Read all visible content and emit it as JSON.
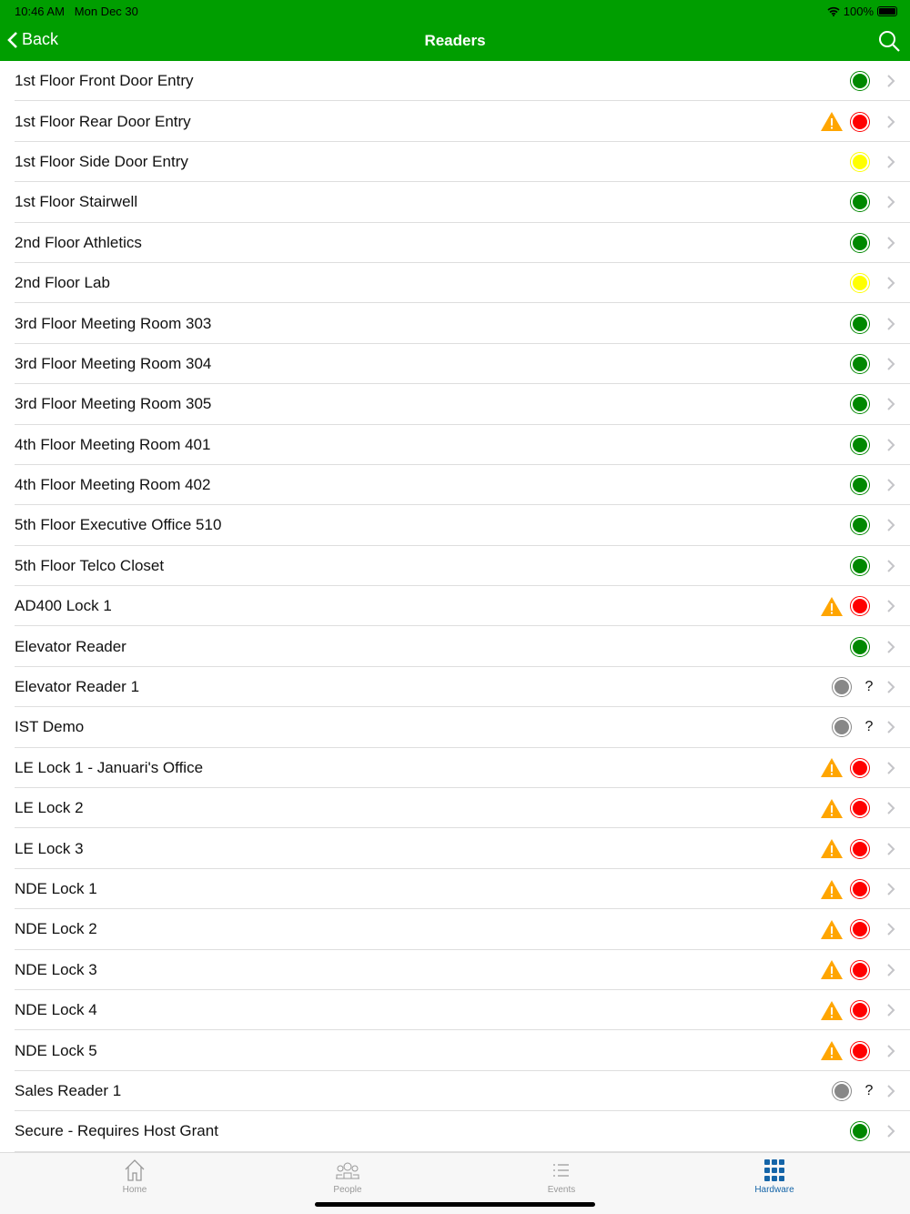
{
  "status_bar": {
    "time": "10:46 AM",
    "date": "Mon Dec 30",
    "battery": "100%"
  },
  "nav": {
    "back_label": "Back",
    "title": "Readers"
  },
  "colors": {
    "accent": "#009e00",
    "online": "#008800",
    "offline": "#ff0000",
    "warning": "#ffff00",
    "unknown": "#888888",
    "alert": "#ffa500",
    "tab_active": "#1565a8"
  },
  "readers": [
    {
      "name": "1st Floor Front Door Entry",
      "status": "online"
    },
    {
      "name": "1st Floor Rear Door Entry",
      "status": "offline"
    },
    {
      "name": "1st Floor Side Door Entry",
      "status": "warning"
    },
    {
      "name": "1st Floor Stairwell",
      "status": "online"
    },
    {
      "name": "2nd Floor Athletics",
      "status": "online"
    },
    {
      "name": "2nd Floor Lab",
      "status": "warning"
    },
    {
      "name": "3rd Floor Meeting Room 303",
      "status": "online"
    },
    {
      "name": "3rd Floor Meeting Room 304",
      "status": "online"
    },
    {
      "name": "3rd Floor Meeting Room 305",
      "status": "online"
    },
    {
      "name": "4th Floor Meeting Room 401",
      "status": "online"
    },
    {
      "name": "4th Floor Meeting Room 402",
      "status": "online"
    },
    {
      "name": "5th Floor Executive Office 510",
      "status": "online"
    },
    {
      "name": "5th Floor Telco Closet",
      "status": "online"
    },
    {
      "name": "AD400 Lock 1",
      "status": "offline"
    },
    {
      "name": "Elevator Reader",
      "status": "online"
    },
    {
      "name": "Elevator Reader 1",
      "status": "unknown"
    },
    {
      "name": "IST Demo",
      "status": "unknown"
    },
    {
      "name": "LE Lock 1 - Januari's Office",
      "status": "offline"
    },
    {
      "name": "LE Lock 2",
      "status": "offline"
    },
    {
      "name": "LE Lock 3",
      "status": "offline"
    },
    {
      "name": "NDE Lock 1",
      "status": "offline"
    },
    {
      "name": "NDE Lock 2",
      "status": "offline"
    },
    {
      "name": "NDE Lock 3",
      "status": "offline"
    },
    {
      "name": "NDE Lock 4",
      "status": "offline"
    },
    {
      "name": "NDE Lock 5",
      "status": "offline"
    },
    {
      "name": "Sales Reader 1",
      "status": "unknown"
    },
    {
      "name": "Secure - Requires Host Grant",
      "status": "online"
    }
  ],
  "unknown_mark": "?",
  "tabs": [
    {
      "label": "Home",
      "icon": "home-icon"
    },
    {
      "label": "People",
      "icon": "people-icon"
    },
    {
      "label": "Events",
      "icon": "list-icon"
    },
    {
      "label": "Hardware",
      "icon": "grid-icon",
      "active": true
    }
  ]
}
